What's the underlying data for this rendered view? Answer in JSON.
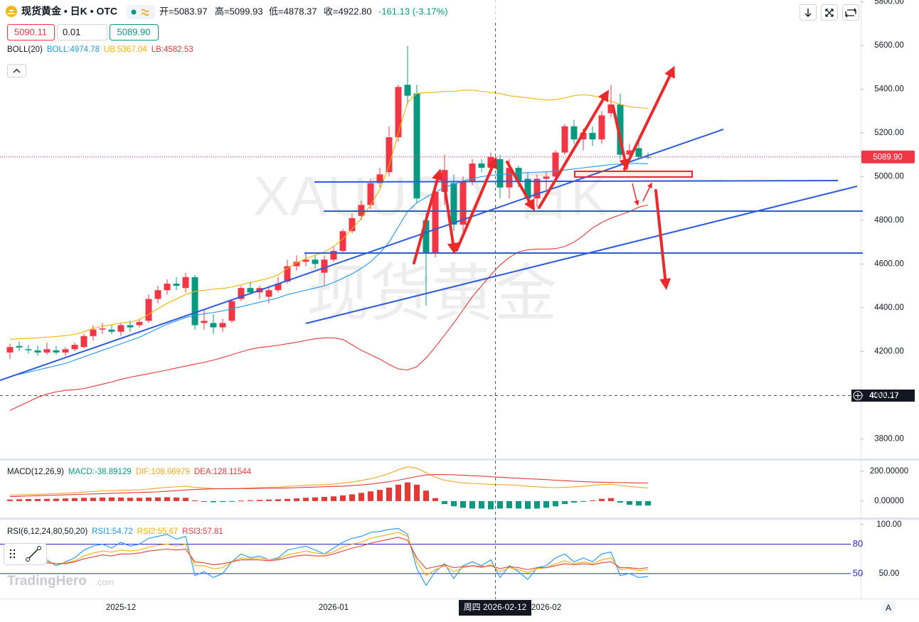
{
  "header": {
    "symbol": "现货黄金 • 日K • OTC",
    "open": "开=5083.97",
    "high": "高=5099.93",
    "low": "低=4878.37",
    "close": "收=4922.80",
    "change": "-161.13 (-3.17%)"
  },
  "order_panel": {
    "sell": "5090.11",
    "quantity": "0.01",
    "buy": "5089.90"
  },
  "watermark": {
    "symbol": "XAUUSD, 日K",
    "name": "现货黄金"
  },
  "crosshair": {
    "date": "周四 2026-02-12",
    "price": "4000.17"
  },
  "last_price_tag": "5089.90",
  "brand": {
    "name": "TradingHero",
    "domain": ".com"
  },
  "scale_button": "A",
  "chart_data": [
    {
      "type": "candlestick",
      "indicator_label": "BOLL(20)",
      "up_color": "#f23645",
      "down_color": "#089981",
      "categories": [
        null,
        null,
        null,
        null,
        null,
        null,
        null,
        null,
        null,
        null,
        null,
        null,
        "2025-12",
        null,
        null,
        null,
        null,
        null,
        null,
        null,
        null,
        null,
        null,
        null,
        null,
        null,
        null,
        null,
        null,
        null,
        null,
        null,
        null,
        null,
        null,
        "2026-01",
        null,
        null,
        null,
        null,
        null,
        null,
        null,
        null,
        null,
        null,
        null,
        null,
        null,
        null,
        null,
        null,
        null,
        null,
        null,
        null,
        null,
        null,
        "2026-02",
        null,
        null,
        null,
        null,
        null,
        null,
        null,
        null,
        null,
        null,
        null
      ],
      "open": [
        4195,
        4225,
        4210,
        4205,
        4195,
        4205,
        4195,
        4210,
        4220,
        4270,
        4300,
        4300,
        4290,
        4320,
        4320,
        4340,
        4440,
        4480,
        4510,
        4490,
        4540,
        4330,
        4330,
        4310,
        4340,
        4440,
        4490,
        4470,
        4450,
        4480,
        4520,
        4590,
        4610,
        4620,
        4560,
        4620,
        4660,
        4750,
        4820,
        4870,
        4970,
        5020,
        5180,
        5420,
        5380,
        4800,
        4650,
        4930,
        4970,
        4780,
        4980,
        5060,
        5040,
        5080,
        4950,
        5040,
        4990,
        4900,
        4990,
        5000,
        5110,
        5230,
        5170,
        5200,
        5170,
        5290,
        5330,
        5100,
        5130,
        5090
      ],
      "high": [
        4235,
        4245,
        4230,
        4225,
        4240,
        4225,
        4220,
        4240,
        4280,
        4320,
        4330,
        4320,
        4330,
        4340,
        4350,
        4460,
        4500,
        4530,
        4540,
        4560,
        4550,
        4390,
        4370,
        4350,
        4440,
        4500,
        4520,
        4500,
        4500,
        4540,
        4620,
        4640,
        4650,
        4640,
        4640,
        4680,
        4760,
        4830,
        4890,
        4990,
        5040,
        5230,
        5420,
        5597,
        5420,
        4830,
        4980,
        5100,
        5010,
        5000,
        5080,
        5080,
        5110,
        5100,
        5080,
        5050,
        5020,
        5010,
        5020,
        5120,
        5240,
        5260,
        5220,
        5230,
        5300,
        5420,
        5380,
        5150,
        5180,
        5110
      ],
      "low": [
        4165,
        4200,
        4190,
        4180,
        4185,
        4185,
        4180,
        4200,
        4215,
        4250,
        4280,
        4280,
        4270,
        4290,
        4310,
        4330,
        4420,
        4460,
        4480,
        4470,
        4300,
        4300,
        4280,
        4290,
        4330,
        4430,
        4460,
        4440,
        4420,
        4470,
        4510,
        4570,
        4590,
        4580,
        4500,
        4610,
        4650,
        4740,
        4800,
        4850,
        4950,
        5000,
        5160,
        5330,
        4880,
        4410,
        4630,
        4870,
        4750,
        4750,
        4960,
        5020,
        5010,
        4900,
        4900,
        4950,
        4880,
        4860,
        4940,
        4990,
        5100,
        5150,
        5120,
        5140,
        5150,
        5270,
        5080,
        5070,
        5080,
        5080
      ],
      "close": [
        4220,
        4218,
        4205,
        4195,
        4210,
        4195,
        4210,
        4230,
        4270,
        4300,
        4305,
        4290,
        4320,
        4310,
        4335,
        4440,
        4480,
        4510,
        4500,
        4540,
        4320,
        4340,
        4310,
        4330,
        4430,
        4490,
        4470,
        4490,
        4480,
        4510,
        4590,
        4610,
        4620,
        4600,
        4620,
        4660,
        4750,
        4810,
        4870,
        4970,
        5010,
        5180,
        5410,
        5370,
        4900,
        4650,
        4930,
        5030,
        4780,
        4980,
        5060,
        5040,
        5090,
        4950,
        5040,
        4980,
        4900,
        4990,
        5000,
        5110,
        5230,
        5170,
        5200,
        5170,
        5280,
        5330,
        5100,
        5120,
        5090,
        5089.9
      ],
      "series": [
        {
          "name": "BOLL:4974.78",
          "type": "line",
          "color": "#2196f3",
          "values": [
            4085,
            4095,
            4105,
            4115,
            4125,
            4135,
            4145,
            4160,
            4175,
            4190,
            4205,
            4220,
            4235,
            4250,
            4265,
            4285,
            4305,
            4325,
            4340,
            4355,
            4365,
            4372,
            4378,
            4385,
            4395,
            4405,
            4415,
            4425,
            4435,
            4445,
            4460,
            4470,
            4480,
            4490,
            4500,
            4515,
            4535,
            4555,
            4580,
            4610,
            4650,
            4700,
            4770,
            4840,
            4880,
            4905,
            4930,
            4950,
            4965,
            4980,
            4990,
            5000,
            5005,
            5010,
            5012,
            5015,
            5018,
            5020,
            5022,
            5025,
            5030,
            5035,
            5040,
            5045,
            5050,
            5055,
            5058,
            5060,
            5060,
            5058
          ]
        },
        {
          "name": "UB:5367.04",
          "type": "line",
          "color": "#f2b200",
          "values": [
            4255,
            4258,
            4260,
            4262,
            4265,
            4268,
            4272,
            4278,
            4290,
            4305,
            4315,
            4322,
            4330,
            4335,
            4345,
            4370,
            4395,
            4420,
            4440,
            4460,
            4475,
            4480,
            4485,
            4488,
            4495,
            4505,
            4515,
            4525,
            4535,
            4550,
            4580,
            4605,
            4625,
            4640,
            4655,
            4680,
            4715,
            4760,
            4810,
            4870,
            4940,
            5050,
            5200,
            5340,
            5380,
            5385,
            5385,
            5390,
            5390,
            5395,
            5395,
            5390,
            5385,
            5380,
            5370,
            5365,
            5360,
            5355,
            5350,
            5352,
            5360,
            5370,
            5375,
            5370,
            5360,
            5345,
            5330,
            5320,
            5315,
            5312
          ]
        },
        {
          "name": "LB:4582.53",
          "type": "line",
          "color": "#e53935",
          "values": [
            3930,
            3950,
            3970,
            3990,
            4005,
            4015,
            4022,
            4025,
            4030,
            4040,
            4050,
            4060,
            4072,
            4082,
            4090,
            4098,
            4106,
            4115,
            4124,
            4133,
            4142,
            4150,
            4160,
            4172,
            4185,
            4198,
            4210,
            4218,
            4222,
            4228,
            4235,
            4242,
            4250,
            4258,
            4262,
            4262,
            4255,
            4230,
            4205,
            4185,
            4165,
            4140,
            4120,
            4115,
            4130,
            4170,
            4220,
            4275,
            4330,
            4390,
            4450,
            4500,
            4550,
            4595,
            4630,
            4655,
            4665,
            4668,
            4668,
            4670,
            4680,
            4700,
            4730,
            4765,
            4790,
            4810,
            4825,
            4840,
            4860,
            4870
          ]
        }
      ],
      "ylim": [
        3710,
        5808
      ],
      "yticks": [
        {
          "value": 3800,
          "label": "3800.00"
        },
        {
          "value": 4000,
          "label": "4000.00"
        },
        {
          "value": 4200,
          "label": "4200.00"
        },
        {
          "value": 4400,
          "label": "4400.00"
        },
        {
          "value": 4600,
          "label": "4600.00"
        },
        {
          "value": 4800,
          "label": "4800.00"
        },
        {
          "value": 5000,
          "label": "5000.00"
        },
        {
          "value": 5200,
          "label": "5200.00"
        },
        {
          "value": 5400,
          "label": "5400.00"
        },
        {
          "value": 5600,
          "label": "5600.00"
        },
        {
          "value": 5800,
          "label": "5800.00"
        }
      ]
    },
    {
      "type": "bar",
      "indicator_label": "MACD(12,26,9)",
      "up_color": "#e53935",
      "down_color": "#089981",
      "series": [
        {
          "name": "MACD:-38.89129",
          "type": "bar",
          "color": "#089981",
          "values": [
            10,
            12,
            14,
            14,
            15,
            16,
            18,
            20,
            22,
            22,
            24,
            25,
            24,
            22,
            22,
            24,
            25,
            26,
            24,
            22,
            5,
            -5,
            -8,
            -6,
            -4,
            3,
            6,
            8,
            10,
            12,
            15,
            18,
            22,
            25,
            28,
            32,
            38,
            45,
            55,
            65,
            75,
            90,
            110,
            125,
            110,
            70,
            20,
            -20,
            -35,
            -45,
            -50,
            -50,
            -55,
            -50,
            -48,
            -50,
            -52,
            -50,
            -45,
            -35,
            -20,
            -10,
            -5,
            5,
            15,
            20,
            -10,
            -25,
            -30,
            -30
          ]
        },
        {
          "name": "DIF:108.66979",
          "type": "line",
          "color": "#f5a623",
          "values": [
            40,
            42,
            44,
            46,
            48,
            50,
            53,
            56,
            60,
            64,
            68,
            70,
            72,
            74,
            76,
            80,
            86,
            92,
            96,
            100,
            92,
            88,
            84,
            82,
            82,
            85,
            88,
            90,
            92,
            94,
            98,
            102,
            106,
            108,
            110,
            114,
            120,
            128,
            138,
            150,
            165,
            185,
            210,
            230,
            220,
            190,
            160,
            140,
            130,
            122,
            118,
            115,
            112,
            110,
            108,
            105,
            100,
            96,
            92,
            90,
            92,
            95,
            100,
            105,
            110,
            112,
            105,
            98,
            92,
            88
          ]
        },
        {
          "name": "DEA:128.11544",
          "type": "line",
          "color": "#e53935",
          "values": [
            30,
            32,
            34,
            36,
            38,
            40,
            42,
            44,
            46,
            48,
            50,
            52,
            54,
            56,
            58,
            60,
            62,
            66,
            70,
            74,
            78,
            80,
            82,
            83,
            84,
            84,
            84,
            85,
            86,
            87,
            88,
            90,
            92,
            94,
            96,
            98,
            100,
            104,
            108,
            114,
            122,
            130,
            140,
            152,
            165,
            175,
            178,
            178,
            176,
            173,
            170,
            167,
            163,
            160,
            156,
            153,
            150,
            147,
            144,
            140,
            136,
            133,
            130,
            128,
            126,
            125,
            124,
            123,
            122,
            121
          ]
        }
      ],
      "ylim": [
        -110,
        271
      ],
      "yticks": [
        {
          "value": 0,
          "label": "0.00000"
        },
        {
          "value": 200,
          "label": "200.00000"
        }
      ]
    },
    {
      "type": "line",
      "indicator_label": "RSI(6,12,24,80,50,20)",
      "level_color": "#2828d8",
      "levels": [
        80,
        50
      ],
      "series": [
        {
          "name": "RSI1:54.72",
          "type": "line",
          "color": "#2196f3",
          "values": [
            70,
            68,
            62,
            60,
            64,
            58,
            62,
            66,
            74,
            78,
            80,
            76,
            82,
            78,
            80,
            86,
            88,
            90,
            85,
            88,
            48,
            52,
            46,
            50,
            62,
            70,
            66,
            68,
            64,
            66,
            74,
            76,
            78,
            74,
            70,
            76,
            82,
            86,
            88,
            92,
            93,
            95,
            96,
            90,
            55,
            38,
            52,
            60,
            45,
            58,
            62,
            58,
            64,
            46,
            58,
            52,
            44,
            56,
            58,
            66,
            70,
            62,
            66,
            62,
            70,
            72,
            48,
            50,
            46,
            47
          ]
        },
        {
          "name": "RSI2:55.67",
          "type": "line",
          "color": "#f5b100",
          "values": [
            66,
            65,
            62,
            61,
            62,
            60,
            61,
            63,
            68,
            71,
            73,
            72,
            74,
            73,
            74,
            77,
            79,
            80,
            78,
            80,
            58,
            58,
            55,
            56,
            62,
            66,
            65,
            66,
            64,
            65,
            69,
            71,
            73,
            71,
            70,
            72,
            77,
            80,
            82,
            86,
            88,
            90,
            92,
            88,
            62,
            48,
            54,
            58,
            52,
            56,
            58,
            56,
            59,
            52,
            56,
            54,
            51,
            55,
            56,
            60,
            63,
            60,
            62,
            60,
            64,
            66,
            54,
            55,
            53,
            54
          ]
        },
        {
          "name": "RSI3:57.81",
          "type": "line",
          "color": "#e04040",
          "values": [
            64,
            63,
            61,
            60,
            61,
            60,
            60,
            62,
            65,
            67,
            69,
            68,
            70,
            70,
            71,
            73,
            74,
            75,
            74,
            75,
            62,
            61,
            59,
            60,
            62,
            64,
            64,
            64,
            63,
            64,
            66,
            68,
            69,
            68,
            68,
            70,
            73,
            76,
            78,
            81,
            83,
            85,
            87,
            84,
            66,
            55,
            57,
            59,
            56,
            57,
            58,
            57,
            58,
            55,
            57,
            56,
            54,
            56,
            56,
            58,
            60,
            59,
            60,
            59,
            61,
            62,
            56,
            56,
            55,
            56
          ]
        }
      ],
      "ylim": [
        26,
        105
      ],
      "yticks": [
        {
          "value": 50,
          "label": "50.00"
        },
        {
          "value": 100,
          "label": "100.00"
        }
      ]
    }
  ]
}
